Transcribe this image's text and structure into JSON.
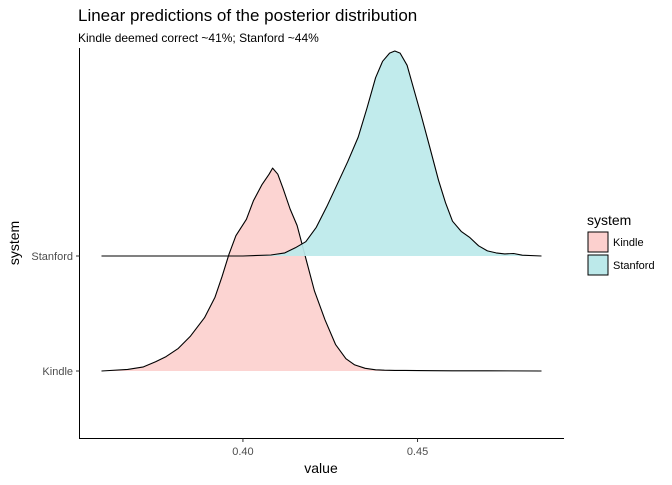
{
  "chart_data": {
    "type": "area",
    "title": "Linear predictions of the posterior distribution",
    "subtitle": "Kindle deemed correct ~41%; Stanford ~44%",
    "xlabel": "value",
    "ylabel": "system",
    "xlim": [
      0.3595,
      0.4855
    ],
    "xticks": [
      0.4,
      0.45
    ],
    "xtick_labels": [
      "0.40",
      "0.45"
    ],
    "categories": [
      "Kindle",
      "Stanford"
    ],
    "grid": false,
    "legend": {
      "title": "system",
      "position": "right"
    },
    "series": [
      {
        "name": "Kindle",
        "color": "#F8766D",
        "fill": "#FCD0CE",
        "density_x": [
          0.3595,
          0.367,
          0.3715,
          0.375,
          0.378,
          0.3815,
          0.385,
          0.389,
          0.392,
          0.394,
          0.396,
          0.398,
          0.401,
          0.403,
          0.4055,
          0.4075,
          0.4085,
          0.41,
          0.4115,
          0.4135,
          0.4155,
          0.418,
          0.4205,
          0.4235,
          0.4265,
          0.4295,
          0.432,
          0.435,
          0.438,
          0.4405,
          0.4435,
          0.4465,
          0.45,
          0.4545,
          0.46,
          0.47,
          0.4855
        ],
        "density_y": [
          0.0,
          0.008,
          0.02,
          0.045,
          0.07,
          0.11,
          0.17,
          0.26,
          0.36,
          0.46,
          0.57,
          0.66,
          0.74,
          0.83,
          0.91,
          0.96,
          0.99,
          0.96,
          0.89,
          0.79,
          0.71,
          0.55,
          0.39,
          0.25,
          0.13,
          0.06,
          0.03,
          0.013,
          0.006,
          0.004,
          0.003,
          0.003,
          0.002,
          0.0015,
          0.001,
          0.001,
          0.0
        ]
      },
      {
        "name": "Stanford",
        "color": "#00BFC4",
        "fill": "#BCE9EA",
        "density_x": [
          0.3595,
          0.38,
          0.4,
          0.408,
          0.412,
          0.415,
          0.418,
          0.421,
          0.424,
          0.427,
          0.43,
          0.433,
          0.4355,
          0.438,
          0.44,
          0.442,
          0.4435,
          0.445,
          0.447,
          0.449,
          0.451,
          0.4535,
          0.456,
          0.458,
          0.46,
          0.4625,
          0.465,
          0.4675,
          0.47,
          0.4725,
          0.475,
          0.4775,
          0.48,
          0.4855
        ],
        "density_y": [
          0.0,
          0.0,
          0.0,
          0.005,
          0.015,
          0.04,
          0.07,
          0.14,
          0.24,
          0.35,
          0.46,
          0.58,
          0.72,
          0.87,
          0.95,
          0.99,
          1.0,
          0.99,
          0.93,
          0.81,
          0.69,
          0.53,
          0.37,
          0.26,
          0.17,
          0.12,
          0.09,
          0.05,
          0.025,
          0.015,
          0.01,
          0.012,
          0.004,
          0.0
        ]
      }
    ]
  }
}
